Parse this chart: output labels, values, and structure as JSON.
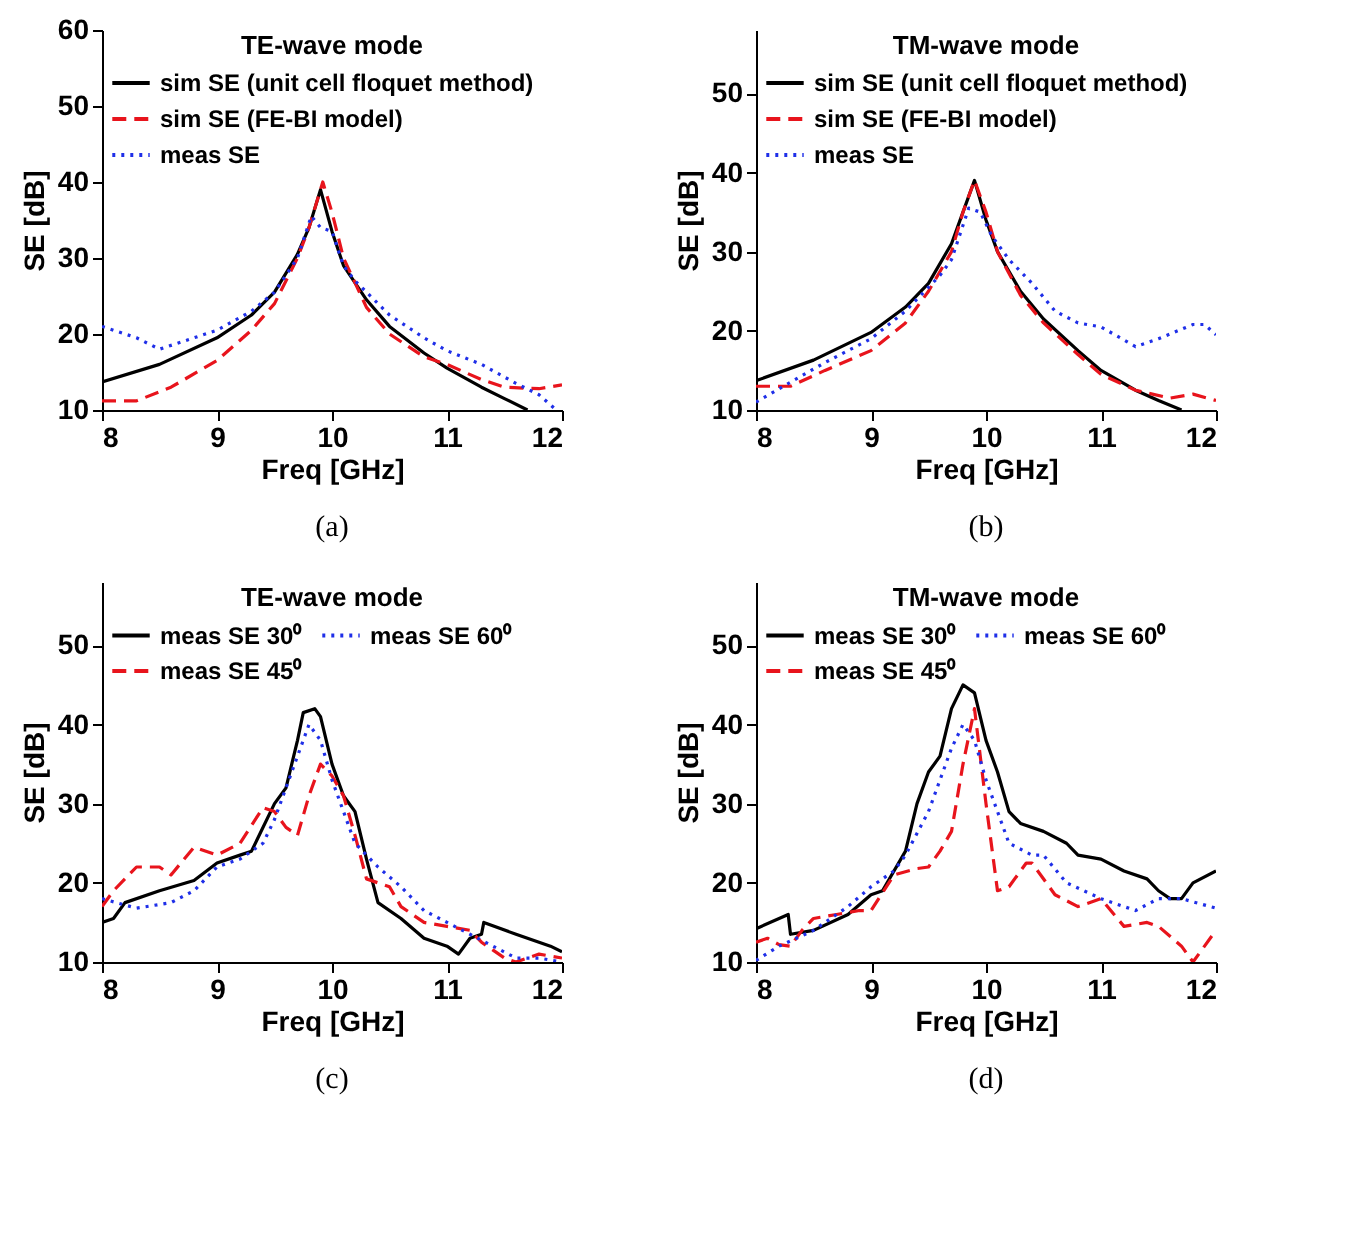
{
  "chart_data": [
    {
      "type": "line",
      "title": "TE-wave mode",
      "xlabel": "Freq [GHz]",
      "ylabel": "SE [dB]",
      "xlim": [
        8,
        12
      ],
      "ylim": [
        10,
        60
      ],
      "xticks": [
        8,
        9,
        10,
        11,
        12
      ],
      "yticks": [
        10,
        20,
        30,
        40,
        50,
        60
      ],
      "grid": false,
      "legend": "top",
      "marker": "none",
      "annotations": [
        "(a)"
      ],
      "series": [
        {
          "name": "sim SE (unit cell floquet method)",
          "color": "#000000",
          "line_style": "solid",
          "x": [
            8,
            8.5,
            9,
            9.3,
            9.5,
            9.7,
            9.8,
            9.9,
            10,
            10.1,
            10.3,
            10.5,
            10.8,
            11,
            11.3,
            11.5,
            11.7
          ],
          "values": [
            13.7,
            16,
            19.5,
            22.5,
            25.5,
            30.5,
            34,
            39,
            33.5,
            29,
            24.5,
            21,
            17.5,
            15.5,
            13,
            11.5,
            10
          ]
        },
        {
          "name": "sim SE (FE-BI model)",
          "color": "#e8141c",
          "line_style": "dashed",
          "x": [
            8,
            8.3,
            8.6,
            9,
            9.3,
            9.5,
            9.7,
            9.8,
            9.92,
            10,
            10.1,
            10.3,
            10.5,
            10.8,
            11,
            11.3,
            11.5,
            11.8,
            12
          ],
          "values": [
            11.2,
            11.2,
            13,
            16.5,
            20.5,
            24,
            30,
            34,
            40,
            36,
            30,
            23.5,
            20,
            17,
            16,
            14,
            13,
            12.8,
            13.3
          ]
        },
        {
          "name": "meas SE",
          "color": "#1f2fe8",
          "line_style": "dotted",
          "x": [
            8,
            8.3,
            8.5,
            8.8,
            9,
            9.3,
            9.5,
            9.7,
            9.82,
            9.9,
            10,
            10.1,
            10.2,
            10.5,
            10.8,
            11,
            11.3,
            11.6,
            11.8,
            11.95
          ],
          "values": [
            21,
            19.5,
            18,
            19.5,
            20.5,
            23,
            25.5,
            30,
            35.5,
            34,
            33.5,
            29,
            27,
            22.5,
            19.5,
            17.8,
            16,
            13.5,
            12,
            10
          ]
        }
      ]
    },
    {
      "type": "line",
      "title": "TM-wave mode",
      "xlabel": "Freq [GHz]",
      "ylabel": "SE [dB]",
      "xlim": [
        8,
        12
      ],
      "ylim": [
        10,
        58
      ],
      "xticks": [
        8,
        9,
        10,
        11,
        12
      ],
      "yticks": [
        10,
        20,
        30,
        40,
        50
      ],
      "grid": false,
      "legend": "top",
      "marker": "none",
      "annotations": [
        "(b)"
      ],
      "series": [
        {
          "name": "sim SE (unit cell floquet method)",
          "color": "#000000",
          "line_style": "solid",
          "x": [
            8,
            8.5,
            9,
            9.3,
            9.5,
            9.7,
            9.9,
            10,
            10.1,
            10.3,
            10.5,
            10.8,
            11,
            11.3,
            11.5,
            11.7
          ],
          "values": [
            13.7,
            16.3,
            19.8,
            23,
            26,
            31,
            39,
            34,
            30,
            25,
            21.5,
            17.5,
            15,
            12.5,
            11.2,
            10
          ]
        },
        {
          "name": "sim SE (FE-BI model)",
          "color": "#e8141c",
          "line_style": "dashed",
          "x": [
            8,
            8.3,
            8.6,
            9,
            9.3,
            9.5,
            9.7,
            9.8,
            9.9,
            10,
            10.1,
            10.3,
            10.5,
            10.8,
            11,
            11.3,
            11.6,
            11.8,
            12
          ],
          "values": [
            13,
            13,
            15,
            17.5,
            21,
            25,
            30,
            35,
            39,
            35,
            30,
            24.5,
            21,
            17,
            14.5,
            12.5,
            11.5,
            12,
            11.2
          ]
        },
        {
          "name": "meas SE",
          "color": "#1f2fe8",
          "line_style": "dotted",
          "x": [
            8,
            8.3,
            8.6,
            9,
            9.3,
            9.6,
            9.7,
            9.85,
            9.95,
            10.05,
            10.2,
            10.4,
            10.6,
            10.8,
            11,
            11.3,
            11.5,
            11.8,
            11.9,
            12
          ],
          "values": [
            11,
            13.5,
            16,
            19,
            22.5,
            27,
            29,
            35.5,
            35,
            32,
            29,
            26,
            22.5,
            21,
            20.5,
            18,
            19,
            20.8,
            20.8,
            19.5
          ]
        }
      ]
    },
    {
      "type": "line",
      "title": "TE-wave mode",
      "xlabel": "Freq [GHz]",
      "ylabel": "SE [dB]",
      "xlim": [
        8,
        12
      ],
      "ylim": [
        10,
        58
      ],
      "xticks": [
        8,
        9,
        10,
        11,
        12
      ],
      "yticks": [
        10,
        20,
        30,
        40,
        50
      ],
      "grid": false,
      "legend": "top",
      "marker": "none",
      "annotations": [
        "(c)"
      ],
      "series": [
        {
          "name": "meas SE 30⁰",
          "color": "#000000",
          "line_style": "solid",
          "x": [
            8,
            8.1,
            8.2,
            8.5,
            8.8,
            9,
            9.2,
            9.3,
            9.5,
            9.6,
            9.7,
            9.75,
            9.85,
            9.9,
            10,
            10.1,
            10.2,
            10.3,
            10.4,
            10.6,
            10.8,
            11,
            11.1,
            11.2,
            11.3,
            11.32,
            11.6,
            11.9,
            12
          ],
          "values": [
            15,
            15.5,
            17.5,
            19,
            20.3,
            22.5,
            23.5,
            24,
            30,
            32,
            38,
            41.5,
            42,
            41,
            35,
            31,
            29,
            23,
            17.5,
            15.5,
            13,
            12,
            11,
            13,
            13.5,
            15,
            13.5,
            12,
            11.3
          ]
        },
        {
          "name": "meas SE 45⁰",
          "color": "#e8141c",
          "line_style": "dashed",
          "x": [
            8,
            8.1,
            8.3,
            8.5,
            8.6,
            8.8,
            9,
            9.2,
            9.4,
            9.5,
            9.6,
            9.7,
            9.8,
            9.9,
            10,
            10.1,
            10.2,
            10.3,
            10.5,
            10.6,
            10.8,
            11,
            11.2,
            11.3,
            11.5,
            11.6,
            11.8,
            12
          ],
          "values": [
            17,
            19,
            22,
            22,
            21,
            24.5,
            23.5,
            25,
            29.5,
            29,
            27,
            26,
            31,
            35,
            33.5,
            31,
            26,
            20.5,
            19.5,
            17,
            15,
            14.5,
            14,
            12.5,
            10.5,
            10,
            11,
            10.5
          ]
        },
        {
          "name": "meas SE 60⁰",
          "color": "#1f2fe8",
          "line_style": "dotted",
          "x": [
            8,
            8.3,
            8.6,
            8.8,
            9,
            9.2,
            9.4,
            9.5,
            9.6,
            9.7,
            9.8,
            9.9,
            10,
            10.1,
            10.2,
            10.4,
            10.6,
            10.8,
            11,
            11.2,
            11.4,
            11.6,
            11.8,
            12
          ],
          "values": [
            18,
            16.8,
            17.5,
            19,
            22,
            23,
            25,
            28,
            32,
            36,
            40,
            38,
            33,
            29,
            25,
            22,
            19.5,
            16.5,
            15,
            13.5,
            12,
            10.5,
            10.5,
            10
          ]
        }
      ]
    },
    {
      "type": "line",
      "title": "TM-wave mode",
      "xlabel": "Freq [GHz]",
      "ylabel": "SE [dB]",
      "xlim": [
        8,
        12
      ],
      "ylim": [
        10,
        58
      ],
      "xticks": [
        8,
        9,
        10,
        11,
        12
      ],
      "yticks": [
        10,
        20,
        30,
        40,
        50
      ],
      "grid": false,
      "legend": "top",
      "marker": "none",
      "annotations": [
        "(d)"
      ],
      "series": [
        {
          "name": "meas SE 30⁰",
          "color": "#000000",
          "line_style": "solid",
          "x": [
            8,
            8.28,
            8.3,
            8.5,
            8.8,
            9,
            9.1,
            9.3,
            9.4,
            9.5,
            9.6,
            9.7,
            9.8,
            9.9,
            10,
            10.1,
            10.2,
            10.3,
            10.5,
            10.7,
            10.8,
            11,
            11.2,
            11.4,
            11.5,
            11.6,
            11.7,
            11.8,
            12
          ],
          "values": [
            14.2,
            16,
            13.5,
            14,
            16,
            18.5,
            19,
            24,
            30,
            34,
            36,
            42,
            45,
            44,
            38,
            34,
            29,
            27.5,
            26.5,
            25,
            23.5,
            23,
            21.5,
            20.5,
            19,
            18,
            18,
            20,
            21.5
          ]
        },
        {
          "name": "meas SE 45⁰",
          "color": "#e8141c",
          "line_style": "dashed",
          "x": [
            8,
            8.1,
            8.2,
            8.3,
            8.4,
            8.5,
            8.7,
            8.9,
            9,
            9.2,
            9.4,
            9.5,
            9.6,
            9.7,
            9.8,
            9.9,
            10,
            10.1,
            10.2,
            10.35,
            10.4,
            10.6,
            10.8,
            11,
            11.2,
            11.4,
            11.5,
            11.7,
            11.8,
            12
          ],
          "values": [
            12.5,
            13,
            12.2,
            12,
            14,
            15.5,
            16,
            16.5,
            16.5,
            21,
            21.8,
            22,
            24,
            26.5,
            35,
            42,
            30,
            19,
            19.5,
            22.5,
            22.5,
            18.5,
            17,
            18,
            14.5,
            15,
            14.5,
            12,
            10,
            14
          ]
        },
        {
          "name": "meas SE 60⁰",
          "color": "#1f2fe8",
          "line_style": "dotted",
          "x": [
            8,
            8.2,
            8.5,
            8.8,
            9,
            9.2,
            9.3,
            9.5,
            9.6,
            9.7,
            9.8,
            9.9,
            10,
            10.2,
            10.4,
            10.5,
            10.7,
            11,
            11.3,
            11.5,
            11.7,
            12
          ],
          "values": [
            10.2,
            12,
            14,
            17,
            19.5,
            21.5,
            23.5,
            29,
            33,
            37,
            40,
            38,
            33,
            25,
            23.5,
            23.5,
            20,
            18,
            16.5,
            18,
            18,
            16.8
          ]
        }
      ]
    }
  ]
}
